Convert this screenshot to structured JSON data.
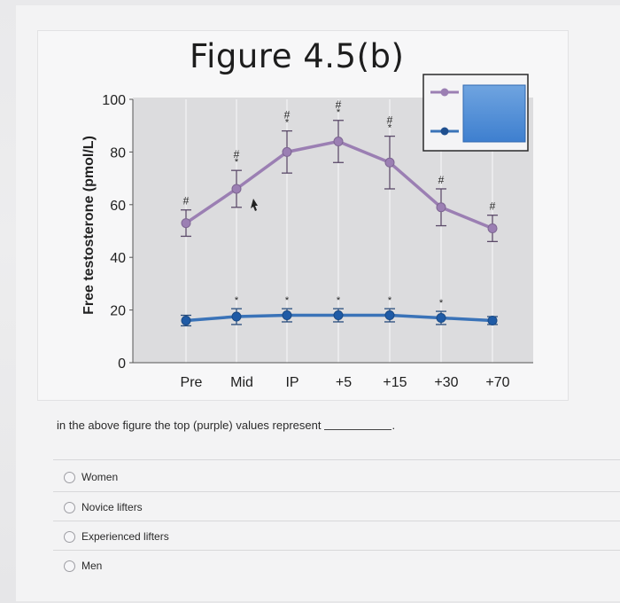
{
  "figure": {
    "title": "Figure 4.5(b)",
    "y_axis_label": "Free testosterone (pmol/L)"
  },
  "chart_data": {
    "type": "line",
    "title": "Figure 4.5(b)",
    "ylabel": "Free testosterone (pmol/L)",
    "xlabel": "",
    "ylim": [
      0,
      100
    ],
    "yticks": [
      "0",
      "20",
      "40",
      "60",
      "80",
      "100"
    ],
    "categories": [
      "Pre",
      "Mid",
      "IP",
      "+5",
      "+15",
      "+30",
      "+70"
    ],
    "grid": true,
    "legend_position": "top-right",
    "series": [
      {
        "color": "#9b7fb3",
        "values": [
          53,
          66,
          80,
          84,
          76,
          59,
          51
        ],
        "errors": [
          5,
          7,
          8,
          8,
          10,
          7,
          5
        ],
        "annotations": [
          "#",
          "#*",
          "#*",
          "#*",
          "#*",
          "#",
          "#"
        ]
      },
      {
        "color": "#3a73b8",
        "values": [
          16,
          17.5,
          18,
          18,
          18,
          17,
          16
        ],
        "errors": [
          2,
          3,
          2.5,
          2.5,
          2.5,
          2.5,
          1.5
        ],
        "annotations": [
          "",
          "*",
          "*",
          "*",
          "*",
          "*",
          ""
        ]
      }
    ]
  },
  "question": {
    "text": "in the above figure the top (purple) values represent"
  },
  "options": [
    {
      "label": "Women"
    },
    {
      "label": "Novice lifters"
    },
    {
      "label": "Experienced lifters"
    },
    {
      "label": "Men"
    }
  ]
}
